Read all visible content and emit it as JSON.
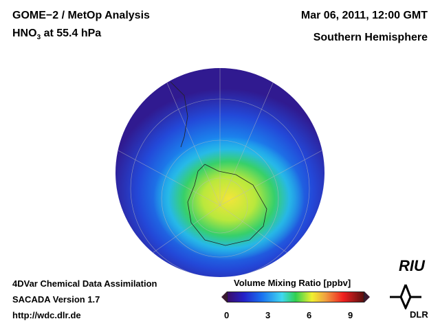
{
  "header": {
    "title": "GOME−2 / MetOp Analysis",
    "species": "HNO",
    "species_sub": "3",
    "level": " at 55.4 hPa",
    "datetime": "Mar 06, 2011, 12:00 GMT",
    "region": "Southern Hemisphere"
  },
  "footer": {
    "line1": "4DVar Chemical Data Assimilation",
    "line2": "SACADA Version 1.7",
    "url": "http://wdc.dlr.de"
  },
  "colorbar": {
    "title": "Volume Mixing Ratio [ppbv]",
    "ticks": [
      "0",
      "3",
      "6",
      "9"
    ],
    "range": [
      0,
      10
    ]
  },
  "logos": {
    "riu": "RIU",
    "dlr": "DLR"
  }
}
